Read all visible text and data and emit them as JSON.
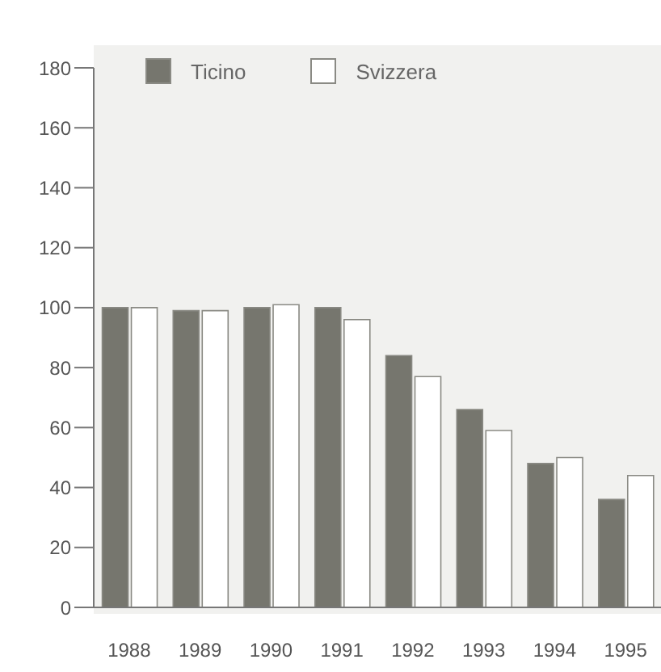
{
  "chart_data": {
    "type": "bar",
    "categories": [
      "1988",
      "1989",
      "1990",
      "1991",
      "1992",
      "1993",
      "1994",
      "1995"
    ],
    "series": [
      {
        "name": "Ticino",
        "color": "#76766e",
        "values": [
          100,
          99,
          100,
          100,
          84,
          66,
          48,
          36
        ]
      },
      {
        "name": "Svizzera",
        "color": "#ffffff",
        "values": [
          100,
          99,
          101,
          96,
          77,
          59,
          50,
          44
        ]
      }
    ],
    "ylim": [
      0,
      180
    ],
    "yticks": [
      0,
      20,
      40,
      60,
      80,
      100,
      120,
      140,
      160,
      180
    ],
    "legend": "top"
  }
}
